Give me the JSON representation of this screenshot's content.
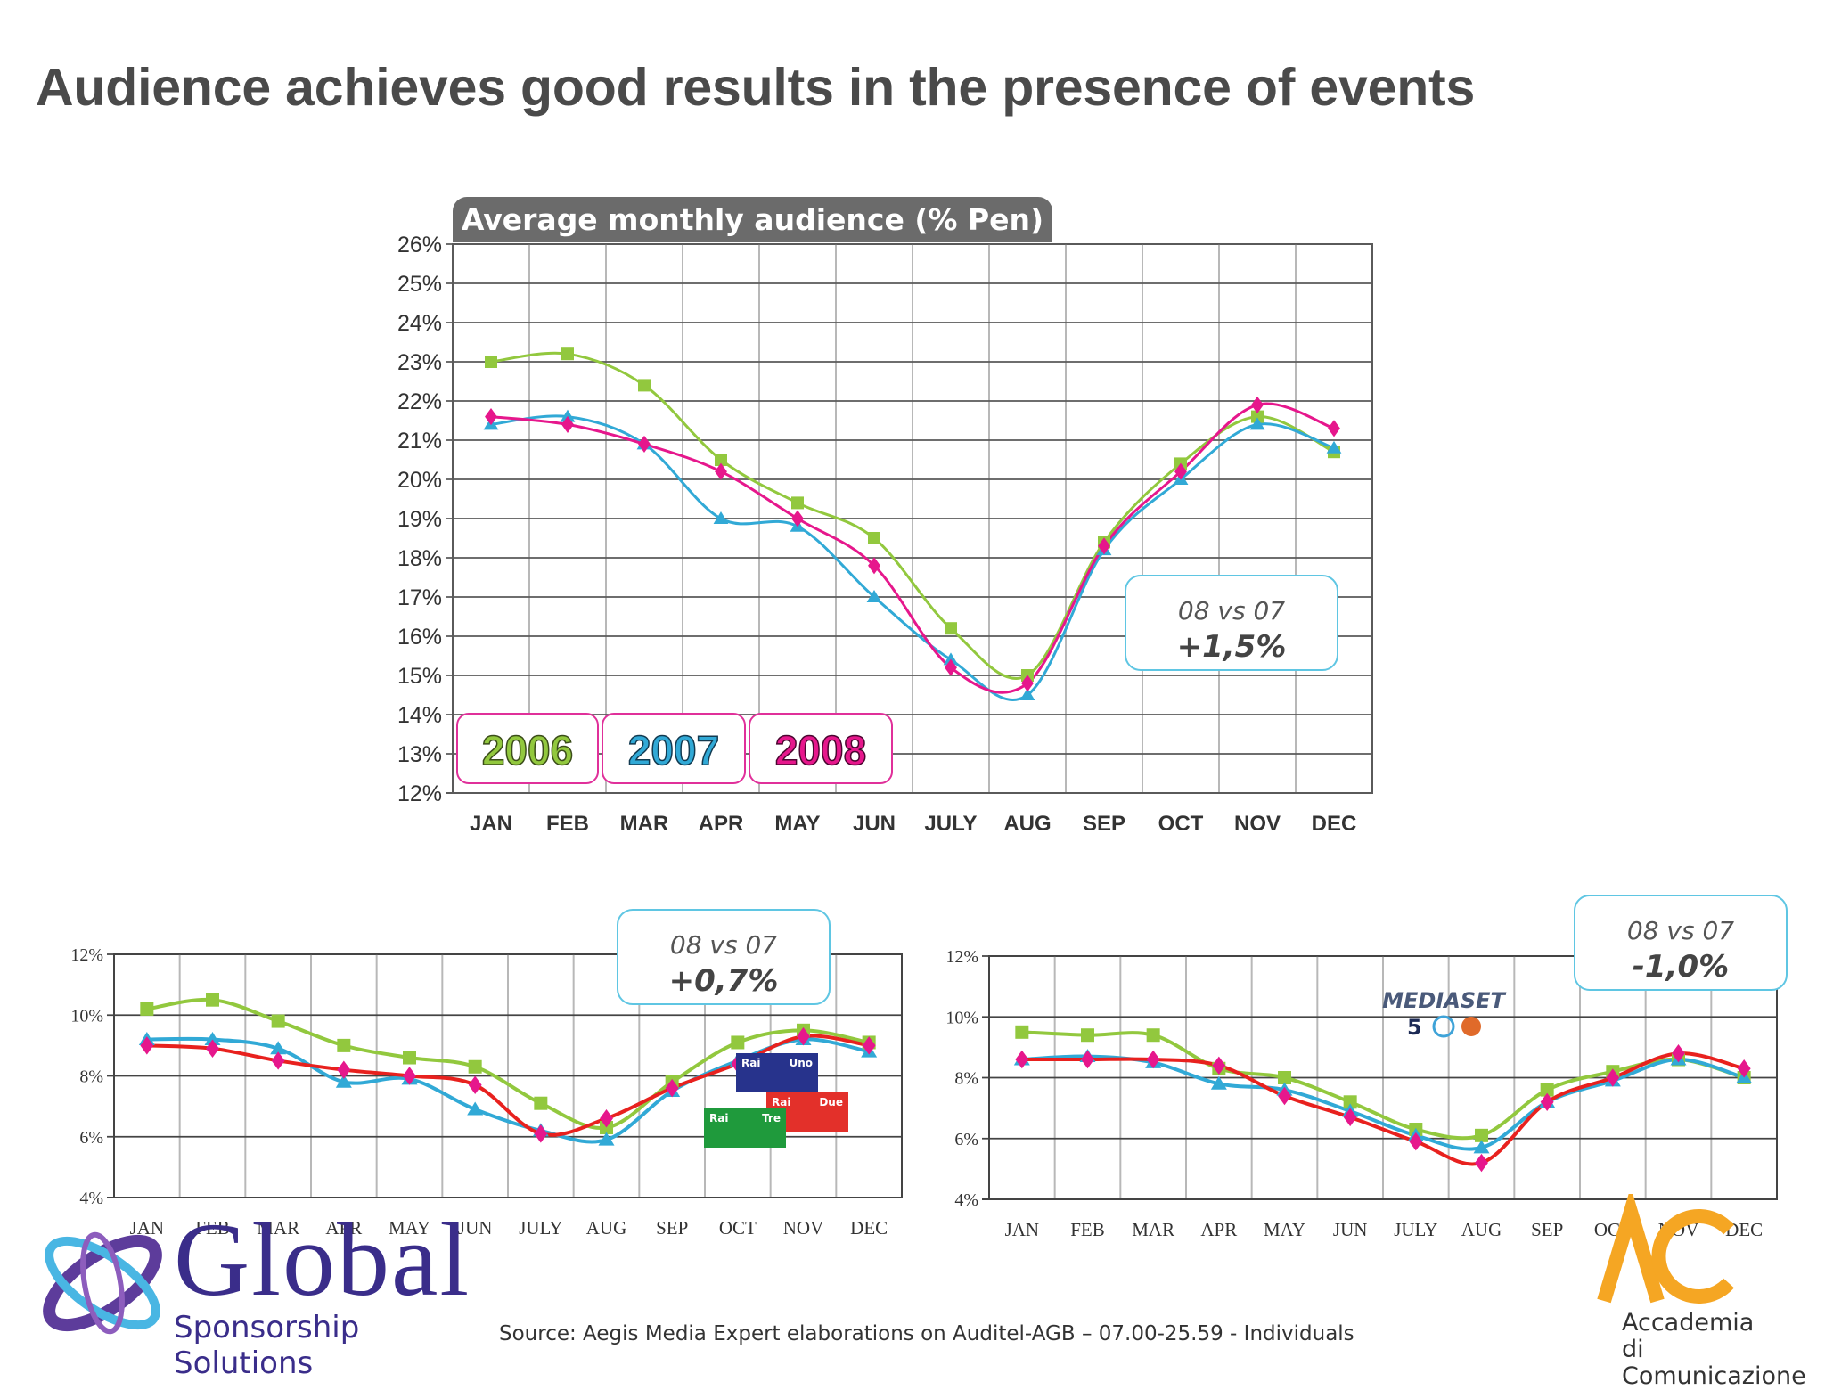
{
  "page": {
    "title": "Audience achieves good results in the presence of events",
    "source": "Source: Aegis Media Expert elaborations on Auditel-AGB –  07.00-25.59 - Individuals"
  },
  "logos": {
    "global_word": "Global",
    "global_sub": "Sponsorship Solutions",
    "accademia_line1": "Accademia",
    "accademia_line2": "di Comunicazione",
    "mediaset": "MEDIASET",
    "rai_uno": [
      "Rai",
      "Uno"
    ],
    "rai_due": [
      "Rai",
      "Due"
    ],
    "rai_tre": [
      "Rai",
      "Tre"
    ]
  },
  "colors": {
    "s2006": "#92c83e",
    "s2007": "#31a9d6",
    "s2008_main": "#e6178c",
    "s2008_sub_line": "#e8211e",
    "grid": "#6e6e6e",
    "callout_border": "#5fc6e3"
  },
  "chart_data": [
    {
      "type": "line",
      "title": "Average monthly audience (% Pen)",
      "categories": [
        "JAN",
        "FEB",
        "MAR",
        "APR",
        "MAY",
        "JUN",
        "JULY",
        "AUG",
        "SEP",
        "OCT",
        "NOV",
        "DEC"
      ],
      "ylim": [
        12,
        26
      ],
      "yticks": [
        "12%",
        "13%",
        "14%",
        "15%",
        "16%",
        "17%",
        "18%",
        "19%",
        "20%",
        "21%",
        "22%",
        "23%",
        "24%",
        "25%",
        "26%"
      ],
      "grid": true,
      "legend": [
        {
          "label": "2006",
          "color": "#92c83e"
        },
        {
          "label": "2007",
          "color": "#31a9d6"
        },
        {
          "label": "2008",
          "color": "#e6178c"
        }
      ],
      "annotation": {
        "label": "08 vs 07",
        "value": "+1,5%"
      },
      "series": [
        {
          "name": "2006",
          "marker": "square",
          "values": [
            23.0,
            23.2,
            22.4,
            20.5,
            19.4,
            18.5,
            16.2,
            15.0,
            18.4,
            20.4,
            21.6,
            20.7
          ]
        },
        {
          "name": "2007",
          "marker": "triangle",
          "values": [
            21.4,
            21.6,
            20.9,
            19.0,
            18.8,
            17.0,
            15.4,
            14.5,
            18.2,
            20.0,
            21.4,
            20.8
          ]
        },
        {
          "name": "2008",
          "marker": "diamond",
          "values": [
            21.6,
            21.4,
            20.9,
            20.2,
            19.0,
            17.8,
            15.2,
            14.8,
            18.3,
            20.2,
            21.9,
            21.3
          ]
        }
      ]
    },
    {
      "type": "line",
      "title": "",
      "categories": [
        "JAN",
        "FEB",
        "MAR",
        "APR",
        "MAY",
        "JUN",
        "JULY",
        "AUG",
        "SEP",
        "OCT",
        "NOV",
        "DEC"
      ],
      "ylim": [
        4,
        12
      ],
      "yticks": [
        "4%",
        "6%",
        "8%",
        "10%",
        "12%"
      ],
      "grid": true,
      "annotation": {
        "label": "08 vs 07",
        "value": "+0,7%"
      },
      "series": [
        {
          "name": "2006",
          "marker": "square",
          "values": [
            10.2,
            10.5,
            9.8,
            9.0,
            8.6,
            8.3,
            7.1,
            6.3,
            7.8,
            9.1,
            9.5,
            9.1
          ]
        },
        {
          "name": "2007",
          "marker": "triangle",
          "values": [
            9.2,
            9.2,
            8.9,
            7.8,
            7.9,
            6.9,
            6.2,
            5.9,
            7.5,
            8.5,
            9.2,
            8.8
          ]
        },
        {
          "name": "2008",
          "marker": "diamond",
          "values": [
            9.0,
            8.9,
            8.5,
            8.2,
            8.0,
            7.7,
            6.1,
            6.6,
            7.6,
            8.4,
            9.3,
            9.0
          ]
        }
      ]
    },
    {
      "type": "line",
      "title": "",
      "categories": [
        "JAN",
        "FEB",
        "MAR",
        "APR",
        "MAY",
        "JUN",
        "JULY",
        "AUG",
        "SEP",
        "OCT",
        "NOV",
        "DEC"
      ],
      "ylim": [
        4,
        12
      ],
      "yticks": [
        "4%",
        "6%",
        "8%",
        "10%",
        "12%"
      ],
      "grid": true,
      "annotation": {
        "label": "08 vs 07",
        "value": "-1,0%"
      },
      "series": [
        {
          "name": "2006",
          "marker": "square",
          "values": [
            9.5,
            9.4,
            9.4,
            8.3,
            8.0,
            7.2,
            6.3,
            6.1,
            7.6,
            8.2,
            8.6,
            8.0
          ]
        },
        {
          "name": "2007",
          "marker": "triangle",
          "values": [
            8.6,
            8.7,
            8.5,
            7.8,
            7.6,
            6.9,
            6.1,
            5.7,
            7.2,
            7.9,
            8.6,
            8.0
          ]
        },
        {
          "name": "2008",
          "marker": "diamond",
          "values": [
            8.6,
            8.6,
            8.6,
            8.4,
            7.4,
            6.7,
            5.9,
            5.2,
            7.2,
            8.0,
            8.8,
            8.3
          ]
        }
      ]
    }
  ]
}
